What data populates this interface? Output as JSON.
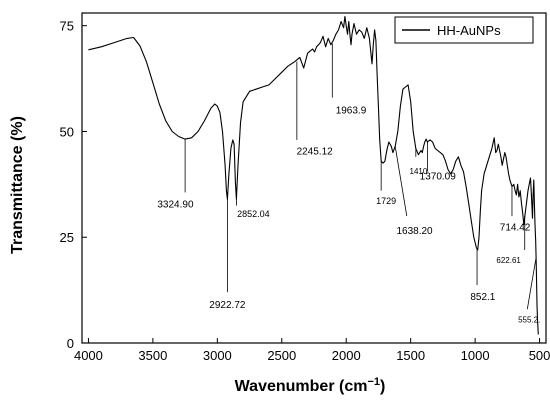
{
  "chart_data": {
    "type": "line",
    "title": "",
    "xlabel": "Wavenumber (cm",
    "xlabel_sup": "−1",
    "xlabel_end": ")",
    "ylabel": "Transmittance (%)",
    "xlim": [
      4050,
      450
    ],
    "ylim": [
      0,
      78
    ],
    "x_reversed": true,
    "grid": false,
    "legend_position": "top-right",
    "x_ticks": [
      {
        "value": 4000,
        "label": "4000"
      },
      {
        "value": 3500,
        "label": "3500"
      },
      {
        "value": 3000,
        "label": "3000"
      },
      {
        "value": 2500,
        "label": "2500"
      },
      {
        "value": 2000,
        "label": "2000"
      },
      {
        "value": 1500,
        "label": "1500"
      },
      {
        "value": 1000,
        "label": "1000"
      },
      {
        "value": 500,
        "label": "500"
      }
    ],
    "y_ticks": [
      {
        "value": 0,
        "label": "0"
      },
      {
        "value": 25,
        "label": "25"
      },
      {
        "value": 50,
        "label": "50"
      },
      {
        "value": 75,
        "label": "75"
      }
    ],
    "series": [
      {
        "name": "HH-AuNPs",
        "color": "#000000",
        "points": [
          [
            4000,
            69.3
          ],
          [
            3900,
            70.0
          ],
          [
            3800,
            71.0
          ],
          [
            3700,
            72.0
          ],
          [
            3650,
            72.2
          ],
          [
            3600,
            70.2
          ],
          [
            3550,
            66.5
          ],
          [
            3500,
            61.5
          ],
          [
            3450,
            56.5
          ],
          [
            3400,
            52.5
          ],
          [
            3350,
            50.0
          ],
          [
            3300,
            48.8
          ],
          [
            3250,
            48.2
          ],
          [
            3200,
            48.5
          ],
          [
            3150,
            50.0
          ],
          [
            3100,
            52.5
          ],
          [
            3050,
            55.5
          ],
          [
            3020,
            56.5
          ],
          [
            3000,
            56.0
          ],
          [
            2980,
            54.5
          ],
          [
            2960,
            50.0
          ],
          [
            2940,
            42.0
          ],
          [
            2930,
            36.0
          ],
          [
            2922,
            34.0
          ],
          [
            2910,
            40.0
          ],
          [
            2895,
            46.0
          ],
          [
            2880,
            48.0
          ],
          [
            2870,
            47.0
          ],
          [
            2860,
            38.0
          ],
          [
            2852,
            34.0
          ],
          [
            2840,
            42.0
          ],
          [
            2820,
            52.0
          ],
          [
            2800,
            57.0
          ],
          [
            2750,
            59.5
          ],
          [
            2700,
            60.0
          ],
          [
            2650,
            60.5
          ],
          [
            2600,
            61.0
          ],
          [
            2550,
            62.5
          ],
          [
            2500,
            64.0
          ],
          [
            2450,
            65.5
          ],
          [
            2400,
            66.5
          ],
          [
            2360,
            67.5
          ],
          [
            2330,
            65.0
          ],
          [
            2300,
            68.5
          ],
          [
            2280,
            69.0
          ],
          [
            2260,
            69.5
          ],
          [
            2245,
            68.8
          ],
          [
            2230,
            70.0
          ],
          [
            2200,
            71.0
          ],
          [
            2180,
            72.5
          ],
          [
            2160,
            70.0
          ],
          [
            2140,
            72.0
          ],
          [
            2120,
            70.5
          ],
          [
            2100,
            71.5
          ],
          [
            2080,
            73.0
          ],
          [
            2060,
            74.0
          ],
          [
            2040,
            76.0
          ],
          [
            2020,
            74.5
          ],
          [
            2010,
            77.2
          ],
          [
            2000,
            75.0
          ],
          [
            1990,
            73.0
          ],
          [
            1980,
            76.0
          ],
          [
            1970,
            72.5
          ],
          [
            1963,
            70.5
          ],
          [
            1955,
            73.0
          ],
          [
            1940,
            75.5
          ],
          [
            1920,
            73.0
          ],
          [
            1900,
            74.0
          ],
          [
            1880,
            73.5
          ],
          [
            1860,
            72.0
          ],
          [
            1840,
            74.5
          ],
          [
            1820,
            72.0
          ],
          [
            1800,
            66.0
          ],
          [
            1790,
            70.5
          ],
          [
            1780,
            74.0
          ],
          [
            1770,
            71.5
          ],
          [
            1760,
            63.0
          ],
          [
            1750,
            56.0
          ],
          [
            1740,
            48.0
          ],
          [
            1729,
            43.0
          ],
          [
            1715,
            42.5
          ],
          [
            1700,
            43.0
          ],
          [
            1685,
            45.5
          ],
          [
            1670,
            47.5
          ],
          [
            1650,
            46.5
          ],
          [
            1638,
            45.0
          ],
          [
            1620,
            46.5
          ],
          [
            1600,
            50.0
          ],
          [
            1580,
            56.0
          ],
          [
            1560,
            60.0
          ],
          [
            1540,
            60.5
          ],
          [
            1520,
            61.0
          ],
          [
            1500,
            57.0
          ],
          [
            1480,
            50.0
          ],
          [
            1460,
            46.0
          ],
          [
            1440,
            44.5
          ],
          [
            1420,
            45.5
          ],
          [
            1410,
            45.0
          ],
          [
            1400,
            46.5
          ],
          [
            1390,
            47.5
          ],
          [
            1380,
            48.2
          ],
          [
            1370,
            47.5
          ],
          [
            1350,
            48.0
          ],
          [
            1330,
            47.5
          ],
          [
            1310,
            46.0
          ],
          [
            1290,
            45.5
          ],
          [
            1270,
            45.0
          ],
          [
            1250,
            44.5
          ],
          [
            1230,
            43.0
          ],
          [
            1210,
            41.0
          ],
          [
            1190,
            40.0
          ],
          [
            1170,
            41.0
          ],
          [
            1150,
            43.0
          ],
          [
            1130,
            44.0
          ],
          [
            1110,
            42.0
          ],
          [
            1090,
            40.5
          ],
          [
            1070,
            37.0
          ],
          [
            1050,
            33.0
          ],
          [
            1030,
            29.0
          ],
          [
            1010,
            25.0
          ],
          [
            990,
            22.5
          ],
          [
            980,
            22.0
          ],
          [
            970,
            25.0
          ],
          [
            960,
            31.0
          ],
          [
            950,
            36.0
          ],
          [
            930,
            40.0
          ],
          [
            910,
            42.0
          ],
          [
            890,
            44.0
          ],
          [
            870,
            46.0
          ],
          [
            852,
            48.5
          ],
          [
            840,
            45.0
          ],
          [
            830,
            45.5
          ],
          [
            820,
            47.0
          ],
          [
            800,
            44.0
          ],
          [
            790,
            42.0
          ],
          [
            780,
            43.5
          ],
          [
            770,
            45.0
          ],
          [
            760,
            44.0
          ],
          [
            750,
            42.0
          ],
          [
            740,
            40.0
          ],
          [
            730,
            38.5
          ],
          [
            714,
            37.0
          ],
          [
            700,
            37.5
          ],
          [
            690,
            36.0
          ],
          [
            680,
            35.0
          ],
          [
            670,
            37.5
          ],
          [
            660,
            34.5
          ],
          [
            650,
            36.0
          ],
          [
            640,
            33.0
          ],
          [
            630,
            30.5
          ],
          [
            622,
            28.0
          ],
          [
            610,
            31.0
          ],
          [
            600,
            33.5
          ],
          [
            590,
            36.0
          ],
          [
            580,
            37.5
          ],
          [
            570,
            39.0
          ],
          [
            565,
            36.0
          ],
          [
            560,
            33.0
          ],
          [
            555,
            29.5
          ],
          [
            550,
            35.0
          ],
          [
            545,
            38.5
          ],
          [
            540,
            33.0
          ],
          [
            535,
            28.0
          ],
          [
            530,
            24.0
          ],
          [
            525,
            18.0
          ],
          [
            520,
            9.0
          ],
          [
            515,
            5.0
          ],
          [
            510,
            2.0
          ]
        ]
      }
    ],
    "annotations": [
      {
        "label": "3324.90",
        "x": 3250,
        "line_from": 48.2,
        "line_to": 35.6,
        "text_x": 3325,
        "text_y": 32.0,
        "size": 10
      },
      {
        "label": "2922.72",
        "x": 2922,
        "line_from": 34.0,
        "line_to": 12.0,
        "text_x": 2922,
        "text_y": 8.3,
        "size": 10
      },
      {
        "label": "2852.04",
        "x": 2852,
        "line_from": 34.0,
        "line_to": 32.5,
        "text_x": 2720,
        "text_y": 29.8,
        "size": 9
      },
      {
        "label": "2245.12",
        "x": 2383,
        "line_from": 66.5,
        "line_to": 48.0,
        "text_x": 2245,
        "text_y": 44.5,
        "size": 10
      },
      {
        "label": "1963.9",
        "x": 2108,
        "line_from": 70.8,
        "line_to": 58.0,
        "text_x": 1963,
        "text_y": 54.3,
        "size": 10
      },
      {
        "label": "1729",
        "x": 1729,
        "line_from": 43.0,
        "line_to": 36.0,
        "text_x": 1690,
        "text_y": 32.8,
        "size": 9
      },
      {
        "label": "1638.20",
        "x": 1620,
        "line_from": 46.5,
        "line_to": 30.0,
        "text_x": 1470,
        "text_y": 25.8,
        "size": 10,
        "diag_to_x": 1530
      },
      {
        "label": "1410",
        "x": 1460,
        "line_from": 46.0,
        "line_to": 44.0,
        "text_x": 1440,
        "text_y": 40.0,
        "size": 8
      },
      {
        "label": "1370.09",
        "x": 1370,
        "line_from": 47.5,
        "line_to": 40.5,
        "text_x": 1290,
        "text_y": 38.6,
        "size": 10
      },
      {
        "label": "852.1",
        "x": 985,
        "line_from": 22.3,
        "line_to": 13.7,
        "text_x": 940,
        "text_y": 10.2,
        "size": 10
      },
      {
        "label": "714.42",
        "x": 714,
        "line_from": 37.0,
        "line_to": 30.0,
        "text_x": 690,
        "text_y": 26.6,
        "size": 10
      },
      {
        "label": "622.61",
        "x": 615,
        "line_from": 30.0,
        "line_to": 22.0,
        "text_x": 740,
        "text_y": 18.9,
        "size": 8
      },
      {
        "label": "555.2.",
        "x": 528,
        "line_from": 20.0,
        "line_to": 8.0,
        "text_x": 580,
        "text_y": 4.8,
        "size": 8,
        "diag_to_x": 595
      }
    ]
  }
}
